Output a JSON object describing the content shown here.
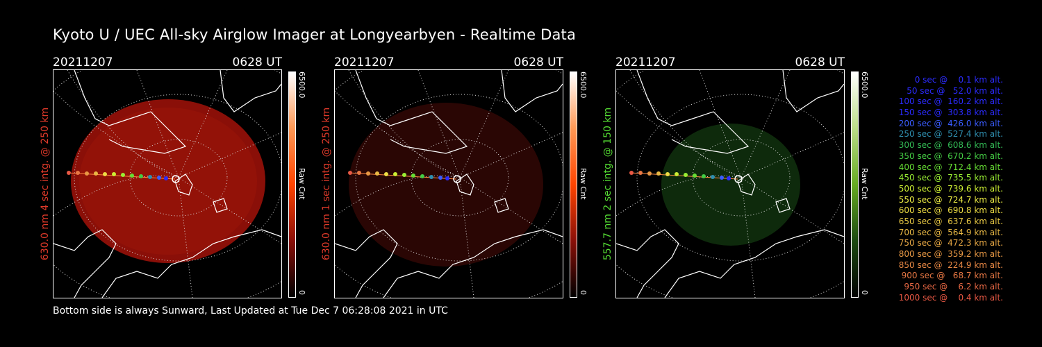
{
  "title": "Kyoto U / UEC All-sky Airglow Imager at Longyearbyen - Realtime Data",
  "footer": "Bottom side is always Sunward, Last Updated at Tue Dec  7 06:28:08 2021 in UTC",
  "colors": {
    "red_label": "#e03a2a",
    "green_label": "#55dd33"
  },
  "panels": [
    {
      "date": "20211207",
      "time": "0628 UT",
      "ylabel": "630.0 nm 4 sec intg. @ 250 km",
      "cbar_max": "6500.0",
      "cbar_min": "0",
      "cbar_unit": "Raw Cnt"
    },
    {
      "date": "20211207",
      "time": "0628 UT",
      "ylabel": "630.0 nm 1 sec intg. @ 250 km",
      "cbar_max": "6500.0",
      "cbar_min": "0",
      "cbar_unit": "Raw Cnt"
    },
    {
      "date": "20211207",
      "time": "0628 UT",
      "ylabel": "557.7 nm 2 sec intg. @ 150 km",
      "cbar_max": "6500.0",
      "cbar_min": "0",
      "cbar_unit": "Raw Cnt"
    }
  ],
  "legend": [
    {
      "text": "0 sec @    0.1 km alt.",
      "color": "#2b2bff"
    },
    {
      "text": "50 sec @   52.0 km alt.",
      "color": "#2b2bff"
    },
    {
      "text": "100 sec @  160.2 km alt.",
      "color": "#2b2bff"
    },
    {
      "text": "150 sec @  303.8 km alt.",
      "color": "#2b2bff"
    },
    {
      "text": "200 sec @  426.0 km alt.",
      "color": "#3a5cff"
    },
    {
      "text": "250 sec @  527.4 km alt.",
      "color": "#2f8fb0"
    },
    {
      "text": "300 sec @  608.6 km alt.",
      "color": "#33bb55"
    },
    {
      "text": "350 sec @  670.2 km alt.",
      "color": "#44cc44"
    },
    {
      "text": "400 sec @  712.4 km alt.",
      "color": "#66dd33"
    },
    {
      "text": "450 sec @  735.5 km alt.",
      "color": "#99ee33"
    },
    {
      "text": "500 sec @  739.6 km alt.",
      "color": "#ccee33"
    },
    {
      "text": "550 sec @  724.7 km alt.",
      "color": "#eeee44"
    },
    {
      "text": "600 sec @  690.8 km alt.",
      "color": "#eedd44"
    },
    {
      "text": "650 sec @  637.6 km alt.",
      "color": "#e8c844"
    },
    {
      "text": "700 sec @  564.9 km alt.",
      "color": "#e8b844"
    },
    {
      "text": "750 sec @  472.3 km alt.",
      "color": "#e8a844"
    },
    {
      "text": "800 sec @  359.2 km alt.",
      "color": "#e89844"
    },
    {
      "text": "850 sec @  224.9 km alt.",
      "color": "#e88844"
    },
    {
      "text": "900 sec @   68.7 km alt.",
      "color": "#e87844"
    },
    {
      "text": "950 sec @    6.2 km alt.",
      "color": "#e86844"
    },
    {
      "text": "1000 sec @    0.4 km alt.",
      "color": "#e85844"
    }
  ]
}
